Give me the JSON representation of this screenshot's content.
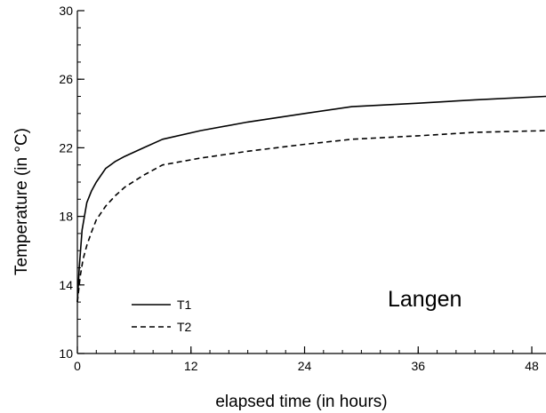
{
  "chart_data": {
    "type": "line",
    "title": "",
    "xlabel": "elapsed time (in hours)",
    "ylabel": "Temperature (in °C)",
    "xlim": [
      0,
      49.5
    ],
    "ylim": [
      10,
      30
    ],
    "x_ticks": [
      0,
      12,
      24,
      36,
      48
    ],
    "y_ticks": [
      10,
      14,
      18,
      22,
      26,
      30
    ],
    "annotation": "Langen",
    "grid": false,
    "legend_position": "bottom-left",
    "series": [
      {
        "name": "T1",
        "line_style": "solid",
        "color": "#000000",
        "x": [
          0,
          0.2,
          0.5,
          1,
          1.5,
          2,
          3,
          4,
          5,
          7,
          9,
          13,
          18,
          24,
          29,
          36,
          42,
          49.5
        ],
        "y": [
          13,
          15,
          17.2,
          18.8,
          19.5,
          20,
          20.8,
          21.2,
          21.5,
          22,
          22.5,
          23,
          23.5,
          24,
          24.4,
          24.6,
          24.8,
          25
        ]
      },
      {
        "name": "T2",
        "line_style": "dashed",
        "color": "#000000",
        "x": [
          0,
          0.3,
          0.6,
          1,
          1.5,
          2,
          3,
          4,
          5,
          7,
          9,
          13,
          18,
          24,
          29,
          36,
          42,
          49.5
        ],
        "y": [
          13,
          14.5,
          15.5,
          16.3,
          17.1,
          17.8,
          18.6,
          19.2,
          19.7,
          20.4,
          21,
          21.4,
          21.8,
          22.2,
          22.5,
          22.7,
          22.9,
          23
        ]
      }
    ]
  }
}
